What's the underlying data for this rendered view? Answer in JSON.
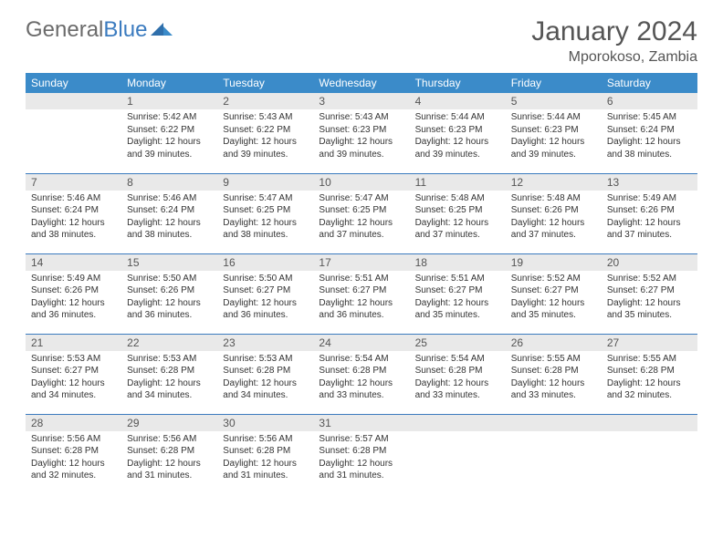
{
  "logo": {
    "text1": "General",
    "text2": "Blue"
  },
  "title": "January 2024",
  "location": "Mporokoso, Zambia",
  "colors": {
    "header_bg": "#3b8bc9",
    "header_text": "#ffffff",
    "daynum_bg": "#e9e9e9",
    "row_border": "#3b7bbf",
    "text": "#333333",
    "title_text": "#555555",
    "logo_gray": "#6b6b6b",
    "logo_blue": "#3b7bbf"
  },
  "days_of_week": [
    "Sunday",
    "Monday",
    "Tuesday",
    "Wednesday",
    "Thursday",
    "Friday",
    "Saturday"
  ],
  "weeks": [
    [
      null,
      {
        "n": "1",
        "sr": "5:42 AM",
        "ss": "6:22 PM",
        "dl": "12 hours and 39 minutes."
      },
      {
        "n": "2",
        "sr": "5:43 AM",
        "ss": "6:22 PM",
        "dl": "12 hours and 39 minutes."
      },
      {
        "n": "3",
        "sr": "5:43 AM",
        "ss": "6:23 PM",
        "dl": "12 hours and 39 minutes."
      },
      {
        "n": "4",
        "sr": "5:44 AM",
        "ss": "6:23 PM",
        "dl": "12 hours and 39 minutes."
      },
      {
        "n": "5",
        "sr": "5:44 AM",
        "ss": "6:23 PM",
        "dl": "12 hours and 39 minutes."
      },
      {
        "n": "6",
        "sr": "5:45 AM",
        "ss": "6:24 PM",
        "dl": "12 hours and 38 minutes."
      }
    ],
    [
      {
        "n": "7",
        "sr": "5:46 AM",
        "ss": "6:24 PM",
        "dl": "12 hours and 38 minutes."
      },
      {
        "n": "8",
        "sr": "5:46 AM",
        "ss": "6:24 PM",
        "dl": "12 hours and 38 minutes."
      },
      {
        "n": "9",
        "sr": "5:47 AM",
        "ss": "6:25 PM",
        "dl": "12 hours and 38 minutes."
      },
      {
        "n": "10",
        "sr": "5:47 AM",
        "ss": "6:25 PM",
        "dl": "12 hours and 37 minutes."
      },
      {
        "n": "11",
        "sr": "5:48 AM",
        "ss": "6:25 PM",
        "dl": "12 hours and 37 minutes."
      },
      {
        "n": "12",
        "sr": "5:48 AM",
        "ss": "6:26 PM",
        "dl": "12 hours and 37 minutes."
      },
      {
        "n": "13",
        "sr": "5:49 AM",
        "ss": "6:26 PM",
        "dl": "12 hours and 37 minutes."
      }
    ],
    [
      {
        "n": "14",
        "sr": "5:49 AM",
        "ss": "6:26 PM",
        "dl": "12 hours and 36 minutes."
      },
      {
        "n": "15",
        "sr": "5:50 AM",
        "ss": "6:26 PM",
        "dl": "12 hours and 36 minutes."
      },
      {
        "n": "16",
        "sr": "5:50 AM",
        "ss": "6:27 PM",
        "dl": "12 hours and 36 minutes."
      },
      {
        "n": "17",
        "sr": "5:51 AM",
        "ss": "6:27 PM",
        "dl": "12 hours and 36 minutes."
      },
      {
        "n": "18",
        "sr": "5:51 AM",
        "ss": "6:27 PM",
        "dl": "12 hours and 35 minutes."
      },
      {
        "n": "19",
        "sr": "5:52 AM",
        "ss": "6:27 PM",
        "dl": "12 hours and 35 minutes."
      },
      {
        "n": "20",
        "sr": "5:52 AM",
        "ss": "6:27 PM",
        "dl": "12 hours and 35 minutes."
      }
    ],
    [
      {
        "n": "21",
        "sr": "5:53 AM",
        "ss": "6:27 PM",
        "dl": "12 hours and 34 minutes."
      },
      {
        "n": "22",
        "sr": "5:53 AM",
        "ss": "6:28 PM",
        "dl": "12 hours and 34 minutes."
      },
      {
        "n": "23",
        "sr": "5:53 AM",
        "ss": "6:28 PM",
        "dl": "12 hours and 34 minutes."
      },
      {
        "n": "24",
        "sr": "5:54 AM",
        "ss": "6:28 PM",
        "dl": "12 hours and 33 minutes."
      },
      {
        "n": "25",
        "sr": "5:54 AM",
        "ss": "6:28 PM",
        "dl": "12 hours and 33 minutes."
      },
      {
        "n": "26",
        "sr": "5:55 AM",
        "ss": "6:28 PM",
        "dl": "12 hours and 33 minutes."
      },
      {
        "n": "27",
        "sr": "5:55 AM",
        "ss": "6:28 PM",
        "dl": "12 hours and 32 minutes."
      }
    ],
    [
      {
        "n": "28",
        "sr": "5:56 AM",
        "ss": "6:28 PM",
        "dl": "12 hours and 32 minutes."
      },
      {
        "n": "29",
        "sr": "5:56 AM",
        "ss": "6:28 PM",
        "dl": "12 hours and 31 minutes."
      },
      {
        "n": "30",
        "sr": "5:56 AM",
        "ss": "6:28 PM",
        "dl": "12 hours and 31 minutes."
      },
      {
        "n": "31",
        "sr": "5:57 AM",
        "ss": "6:28 PM",
        "dl": "12 hours and 31 minutes."
      },
      null,
      null,
      null
    ]
  ],
  "labels": {
    "sunrise": "Sunrise:",
    "sunset": "Sunset:",
    "daylight": "Daylight:"
  }
}
